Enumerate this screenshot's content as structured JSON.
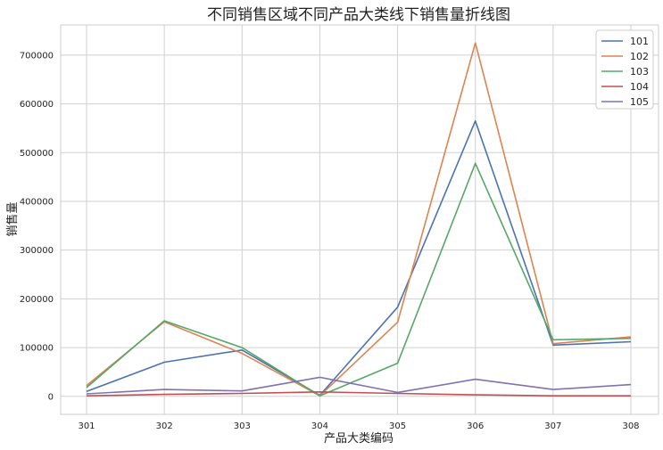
{
  "chart_data": {
    "type": "line",
    "title": "不同销售区域不同产品大类线下销售量折线图",
    "xlabel": "产品大类编码",
    "ylabel": "销售量",
    "categories": [
      "301",
      "302",
      "303",
      "304",
      "305",
      "306",
      "307",
      "308"
    ],
    "yticks": [
      0,
      100000,
      200000,
      300000,
      400000,
      500000,
      600000,
      700000
    ],
    "ylim": [
      -37000,
      762000
    ],
    "grid": true,
    "legend_position": "top-right",
    "series": [
      {
        "name": "101",
        "color": "#4c72b0",
        "values": [
          10000,
          70000,
          95000,
          2000,
          183000,
          565000,
          105000,
          112000
        ]
      },
      {
        "name": "102",
        "color": "#dd8452",
        "values": [
          22000,
          153000,
          88000,
          1000,
          152000,
          725000,
          108000,
          122000
        ]
      },
      {
        "name": "103",
        "color": "#55a868",
        "values": [
          18000,
          155000,
          100000,
          1000,
          68000,
          478000,
          116000,
          119000
        ]
      },
      {
        "name": "104",
        "color": "#c44e52",
        "values": [
          1000,
          4000,
          6000,
          9000,
          6000,
          3000,
          1000,
          1000
        ]
      },
      {
        "name": "105",
        "color": "#8172b3",
        "values": [
          5000,
          14000,
          11000,
          39000,
          8000,
          35000,
          14000,
          24000
        ]
      }
    ]
  }
}
